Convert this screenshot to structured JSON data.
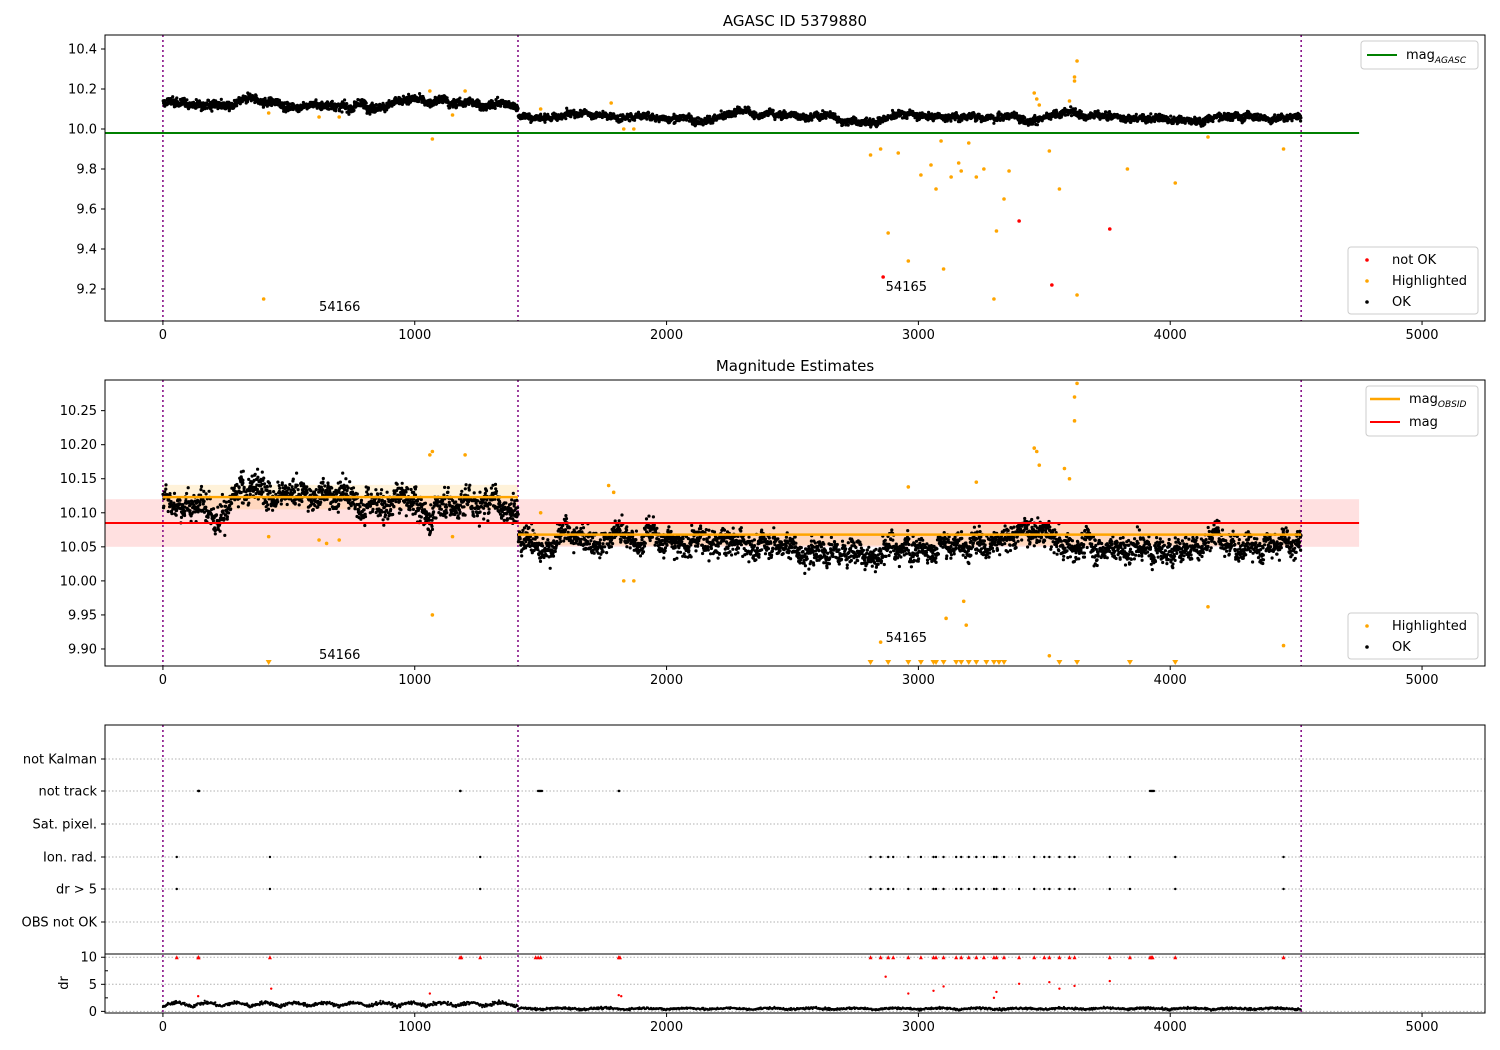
{
  "colors": {
    "ok": "#000000",
    "highlighted": "#ffa500",
    "not_ok": "#ff0000",
    "mag_agasc": "#008000",
    "mag_obsid": "#ffa500",
    "mag": "#ff0000",
    "obs_boundary": "#800080",
    "grid": "#b0b0b0"
  },
  "chart_data": [
    {
      "type": "scatter",
      "title": "AGASC ID 5379880",
      "xlabel": "",
      "ylabel": "",
      "xlim": [
        -230,
        5250
      ],
      "ylim": [
        9.04,
        10.47
      ],
      "xticks": [
        "0",
        "1000",
        "2000",
        "3000",
        "4000",
        "5000"
      ],
      "yticks": [
        "9.2",
        "9.4",
        "9.6",
        "9.8",
        "10.0",
        "10.2",
        "10.4"
      ],
      "mag_agasc": {
        "value": 9.98,
        "x": [
          -230,
          4750
        ]
      },
      "obs_boundaries": [
        0,
        1410,
        4520
      ],
      "obsid_labels": [
        {
          "text": "54166",
          "x": 620,
          "y": 9.09
        },
        {
          "text": "54165",
          "x": 2870,
          "y": 9.19
        }
      ],
      "ok_segments": [
        {
          "x": [
            0,
            1410
          ],
          "center": 10.13,
          "spread": 0.03
        },
        {
          "x": [
            1410,
            4520
          ],
          "center": 10.06,
          "spread": 0.025
        }
      ],
      "highlighted": [
        [
          400,
          9.15
        ],
        [
          420,
          10.08
        ],
        [
          620,
          10.06
        ],
        [
          700,
          10.06
        ],
        [
          1060,
          10.19
        ],
        [
          1070,
          9.95
        ],
        [
          1150,
          10.07
        ],
        [
          1200,
          10.19
        ],
        [
          1500,
          10.1
        ],
        [
          1780,
          10.13
        ],
        [
          1830,
          10.0
        ],
        [
          1870,
          10.0
        ],
        [
          2810,
          9.87
        ],
        [
          2850,
          9.9
        ],
        [
          2880,
          9.48
        ],
        [
          2920,
          9.88
        ],
        [
          2960,
          9.34
        ],
        [
          3010,
          9.77
        ],
        [
          3050,
          9.82
        ],
        [
          3070,
          9.7
        ],
        [
          3090,
          9.94
        ],
        [
          3100,
          9.3
        ],
        [
          3130,
          9.76
        ],
        [
          3160,
          9.83
        ],
        [
          3170,
          9.79
        ],
        [
          3200,
          9.93
        ],
        [
          3230,
          9.76
        ],
        [
          3260,
          9.8
        ],
        [
          3300,
          9.15
        ],
        [
          3310,
          9.49
        ],
        [
          3340,
          9.65
        ],
        [
          3360,
          9.79
        ],
        [
          3460,
          10.18
        ],
        [
          3470,
          10.15
        ],
        [
          3480,
          10.12
        ],
        [
          3520,
          9.89
        ],
        [
          3560,
          9.7
        ],
        [
          3600,
          10.14
        ],
        [
          3620,
          10.26
        ],
        [
          3620,
          10.24
        ],
        [
          3630,
          10.34
        ],
        [
          3630,
          9.17
        ],
        [
          3830,
          9.8
        ],
        [
          4020,
          9.73
        ],
        [
          4150,
          9.96
        ],
        [
          4450,
          9.9
        ]
      ],
      "not_ok": [
        [
          2860,
          9.26
        ],
        [
          3400,
          9.54
        ],
        [
          3530,
          9.22
        ],
        [
          3760,
          9.5
        ]
      ],
      "legend": {
        "entries": [
          "mag",
          "AGASC",
          "not OK",
          "Highlighted",
          "OK"
        ]
      }
    },
    {
      "type": "scatter",
      "title": "Magnitude Estimates",
      "xlabel": "",
      "ylabel": "",
      "xlim": [
        -230,
        5250
      ],
      "ylim": [
        9.875,
        10.295
      ],
      "xticks": [
        "0",
        "1000",
        "2000",
        "3000",
        "4000",
        "5000"
      ],
      "yticks": [
        "9.90",
        "9.95",
        "10.00",
        "10.05",
        "10.10",
        "10.15",
        "10.20",
        "10.25"
      ],
      "mag": {
        "value": 10.085,
        "band": [
          10.05,
          10.12
        ],
        "x": [
          -230,
          4750
        ]
      },
      "mag_obsid": [
        {
          "x": [
            0,
            1410
          ],
          "value": 10.123,
          "band": [
            10.105,
            10.141
          ]
        },
        {
          "x": [
            1410,
            4520
          ],
          "value": 10.068,
          "band": [
            10.052,
            10.084
          ]
        }
      ],
      "obs_boundaries": [
        0,
        1410,
        4520
      ],
      "obsid_labels": [
        {
          "text": "54166",
          "x": 620,
          "y": 9.885
        },
        {
          "text": "54165",
          "x": 2870,
          "y": 9.91
        }
      ],
      "ok_segments": [
        {
          "x": [
            0,
            1410
          ],
          "center": 10.123,
          "spread": 0.028
        },
        {
          "x": [
            1410,
            4520
          ],
          "center": 10.063,
          "spread": 0.025
        }
      ],
      "highlighted": [
        [
          420,
          10.065
        ],
        [
          620,
          10.06
        ],
        [
          650,
          10.055
        ],
        [
          700,
          10.06
        ],
        [
          1060,
          10.185
        ],
        [
          1070,
          10.19
        ],
        [
          1070,
          9.95
        ],
        [
          1150,
          10.065
        ],
        [
          1200,
          10.185
        ],
        [
          1500,
          10.1
        ],
        [
          1770,
          10.14
        ],
        [
          1790,
          10.13
        ],
        [
          1830,
          10.0
        ],
        [
          1870,
          10.0
        ],
        [
          2850,
          9.91
        ],
        [
          2960,
          10.138
        ],
        [
          3110,
          9.945
        ],
        [
          3180,
          9.97
        ],
        [
          3190,
          9.935
        ],
        [
          3230,
          10.145
        ],
        [
          3460,
          10.195
        ],
        [
          3470,
          10.19
        ],
        [
          3480,
          10.17
        ],
        [
          3520,
          9.89
        ],
        [
          3580,
          10.165
        ],
        [
          3600,
          10.15
        ],
        [
          3620,
          10.27
        ],
        [
          3620,
          10.235
        ],
        [
          3630,
          10.29
        ],
        [
          4150,
          9.962
        ],
        [
          4450,
          9.905
        ]
      ],
      "highlighted_offscale_x": [
        420,
        2810,
        2880,
        2960,
        3010,
        3060,
        3070,
        3100,
        3150,
        3170,
        3200,
        3230,
        3270,
        3300,
        3320,
        3340,
        3560,
        3630,
        3840,
        4020
      ],
      "legend": {
        "entries": [
          "mag",
          "OBSID",
          "mag",
          "Highlighted",
          "OK"
        ]
      }
    },
    {
      "type": "scatter",
      "title": "",
      "xlabel": "",
      "ylabel": "dr",
      "xlim": [
        -230,
        5250
      ],
      "flag_rows": [
        "not Kalman",
        "not track",
        "Sat. pixel.",
        "Ion. rad.",
        "dr > 5",
        "OBS not OK"
      ],
      "flags": {
        "not track": [
          140,
          142,
          144,
          1180,
          1182,
          1490,
          1495,
          1500,
          1505,
          1810,
          1812,
          3920,
          3925,
          3930,
          3935
        ],
        "Ion. rad.": [
          55,
          425,
          1260,
          2810,
          2850,
          2880,
          2900,
          2960,
          3010,
          3060,
          3070,
          3100,
          3150,
          3170,
          3200,
          3230,
          3260,
          3300,
          3310,
          3340,
          3400,
          3460,
          3500,
          3520,
          3560,
          3600,
          3620,
          3760,
          3840,
          4020,
          4450
        ],
        "dr > 5": [
          55,
          425,
          1260,
          2810,
          2850,
          2880,
          2900,
          2960,
          3010,
          3060,
          3070,
          3100,
          3150,
          3170,
          3200,
          3230,
          3260,
          3300,
          3310,
          3340,
          3400,
          3460,
          3500,
          3520,
          3560,
          3600,
          3620,
          3760,
          3840,
          4020,
          4450
        ]
      },
      "dr_ylim": [
        -0.3,
        10.6
      ],
      "dr_yticks": [
        "0",
        "5",
        "10"
      ],
      "dr_clipped_x": [
        55,
        140,
        142,
        425,
        1180,
        1185,
        1260,
        1480,
        1490,
        1500,
        1810,
        1815,
        2810,
        2850,
        2880,
        2900,
        2960,
        3010,
        3060,
        3070,
        3100,
        3150,
        3170,
        3200,
        3230,
        3260,
        3300,
        3310,
        3340,
        3400,
        3460,
        3500,
        3520,
        3560,
        3600,
        3620,
        3760,
        3840,
        3920,
        3925,
        3930,
        4020,
        4450
      ],
      "dr_highlight_points": [
        [
          140,
          2.8
        ],
        [
          430,
          4.2
        ],
        [
          1060,
          3.3
        ],
        [
          1810,
          3.0
        ],
        [
          1820,
          2.8
        ],
        [
          2870,
          6.4
        ],
        [
          2960,
          3.3
        ],
        [
          3060,
          3.8
        ],
        [
          3100,
          4.6
        ],
        [
          3300,
          2.5
        ],
        [
          3310,
          3.6
        ],
        [
          3400,
          5.1
        ],
        [
          3520,
          5.4
        ],
        [
          3560,
          4.2
        ],
        [
          3620,
          4.7
        ],
        [
          3760,
          5.6
        ]
      ]
    }
  ]
}
